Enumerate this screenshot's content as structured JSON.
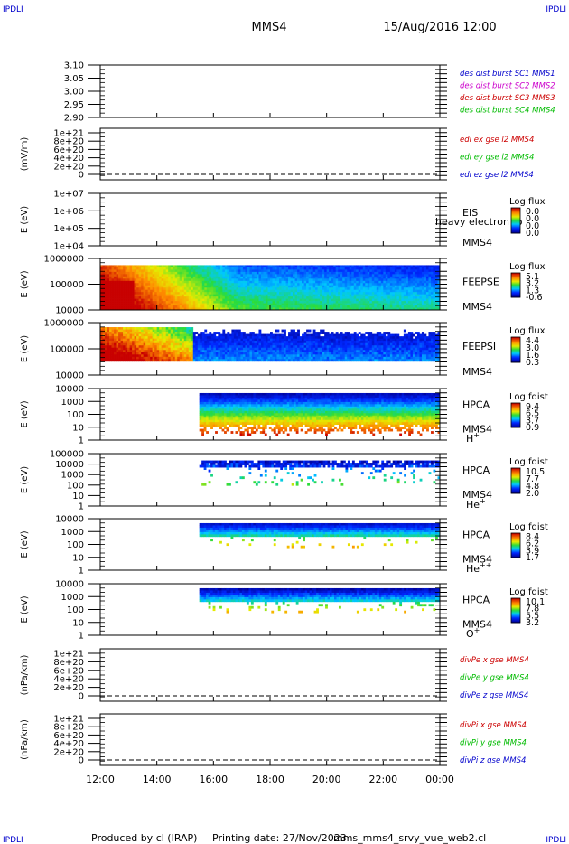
{
  "header": {
    "corner_tl": "IPDLI",
    "corner_tr": "IPDLI",
    "spacecraft": "MMS4",
    "date_time": "15/Aug/2016 12:00"
  },
  "footer": {
    "credit": "Produced by cl (IRAP)",
    "printing": "Printing date: 27/Nov/2023",
    "script": "mms_mms4_srvy_vue_web2.cl",
    "corner_bl": "IPDLI",
    "corner_br": "IPDLI"
  },
  "chart_data": {
    "type": "spectrogram-stack",
    "x_axis": {
      "ticks": [
        "12:00",
        "14:00",
        "16:00",
        "18:00",
        "20:00",
        "22:00",
        "00:00"
      ],
      "range_hours": [
        12,
        24
      ]
    },
    "panels": [
      {
        "id": "p1",
        "kind": "line",
        "ylabel": "",
        "yticks": [
          "3.10",
          "3.05",
          "3.00",
          "2.95",
          "2.90"
        ],
        "legend": [
          {
            "text": "des dist burst SC1 MMS1",
            "color": "#0000cc"
          },
          {
            "text": "des dist burst SC2 MMS2",
            "color": "#cc00cc"
          },
          {
            "text": "des dist burst SC3 MMS3",
            "color": "#cc0000"
          },
          {
            "text": "des dist burst SC4 MMS4",
            "color": "#00bb00"
          }
        ]
      },
      {
        "id": "p2",
        "kind": "line",
        "ylabel": "(mV/m)",
        "yticks": [
          "1e+21",
          "8e+20",
          "6e+20",
          "4e+20",
          "2e+20",
          "0"
        ],
        "dashed_zero": true,
        "legend": [
          {
            "text": "edi ex gse l2 MMS4",
            "color": "#cc0000"
          },
          {
            "text": "edi ey gse l2 MMS4",
            "color": "#00bb00"
          },
          {
            "text": "edi ez gse l2 MMS4",
            "color": "#0000cc"
          }
        ]
      },
      {
        "id": "p3",
        "kind": "spectrogram",
        "ylabel": "E (eV)",
        "yticks": [
          "1e+07",
          "1e+06",
          "1e+05",
          "1e+04"
        ],
        "labels": [
          "EIS",
          "MMS4"
        ],
        "overlay_text": "heavy electron to",
        "colorbar": {
          "title": "Log flux",
          "ticks": [
            "0.0",
            "0.0",
            "0.0",
            "0.0"
          ]
        },
        "coverage": "none"
      },
      {
        "id": "p4",
        "kind": "spectrogram",
        "ylabel": "E (eV)",
        "yticks": [
          "1000000",
          "100000",
          "10000"
        ],
        "labels": [
          "FEEPSE",
          "MMS4"
        ],
        "colorbar": {
          "title": "Log flux",
          "ticks": [
            "5.1",
            "3.2",
            "1.3",
            "-0.6"
          ]
        },
        "coverage": "full"
      },
      {
        "id": "p5",
        "kind": "spectrogram",
        "ylabel": "E (eV)",
        "yticks": [
          "1000000",
          "100000",
          "10000"
        ],
        "labels": [
          "FEEPSI",
          "MMS4"
        ],
        "colorbar": {
          "title": "Log flux",
          "ticks": [
            "4.4",
            "3.0",
            "1.6",
            "0.3"
          ]
        },
        "coverage": "full"
      },
      {
        "id": "p6",
        "kind": "spectrogram",
        "ylabel": "E (eV)",
        "yticks": [
          "10000",
          "1000",
          "100",
          "10",
          "1"
        ],
        "labels": [
          "HPCA",
          "MMS4",
          "H+"
        ],
        "colorbar": {
          "title": "Log fdist",
          "ticks": [
            "9.4",
            "6.5",
            "3.7",
            "0.9"
          ]
        },
        "start_time": "15:30"
      },
      {
        "id": "p7",
        "kind": "spectrogram",
        "ylabel": "E (eV)",
        "yticks": [
          "100000",
          "10000",
          "1000",
          "100",
          "10",
          "1"
        ],
        "labels": [
          "HPCA",
          "MMS4",
          "He+"
        ],
        "colorbar": {
          "title": "Log fdist",
          "ticks": [
            "10.5",
            "7.7",
            "4.8",
            "2.0"
          ]
        },
        "start_time": "15:30"
      },
      {
        "id": "p8",
        "kind": "spectrogram",
        "ylabel": "E (eV)",
        "yticks": [
          "10000",
          "1000",
          "100",
          "10",
          "1"
        ],
        "labels": [
          "HPCA",
          "MMS4",
          "He++"
        ],
        "colorbar": {
          "title": "Log fdist",
          "ticks": [
            "8.4",
            "6.2",
            "3.9",
            "1.7"
          ]
        },
        "start_time": "15:30"
      },
      {
        "id": "p9",
        "kind": "spectrogram",
        "ylabel": "E (eV)",
        "yticks": [
          "10000",
          "1000",
          "100",
          "10",
          "1"
        ],
        "labels": [
          "HPCA",
          "MMS4",
          "O+"
        ],
        "colorbar": {
          "title": "Log fdist",
          "ticks": [
            "10.1",
            "7.8",
            "5.5",
            "3.2"
          ]
        },
        "start_time": "15:30"
      },
      {
        "id": "p10",
        "kind": "line",
        "ylabel": "(nPa/km)",
        "yticks": [
          "1e+21",
          "8e+20",
          "6e+20",
          "4e+20",
          "2e+20",
          "0"
        ],
        "dashed_zero": true,
        "legend": [
          {
            "text": "divPe x gse MMS4",
            "color": "#cc0000"
          },
          {
            "text": "divPe y gse MMS4",
            "color": "#00bb00"
          },
          {
            "text": "divPe z gse MMS4",
            "color": "#0000cc"
          }
        ]
      },
      {
        "id": "p11",
        "kind": "line",
        "ylabel": "(nPa/km)",
        "yticks": [
          "1e+21",
          "8e+20",
          "6e+20",
          "4e+20",
          "2e+20",
          "0"
        ],
        "dashed_zero": true,
        "legend": [
          {
            "text": "divPi x gse MMS4",
            "color": "#cc0000"
          },
          {
            "text": "divPi y gse MMS4",
            "color": "#00bb00"
          },
          {
            "text": "divPi z gse MMS4",
            "color": "#0000cc"
          }
        ]
      }
    ]
  }
}
